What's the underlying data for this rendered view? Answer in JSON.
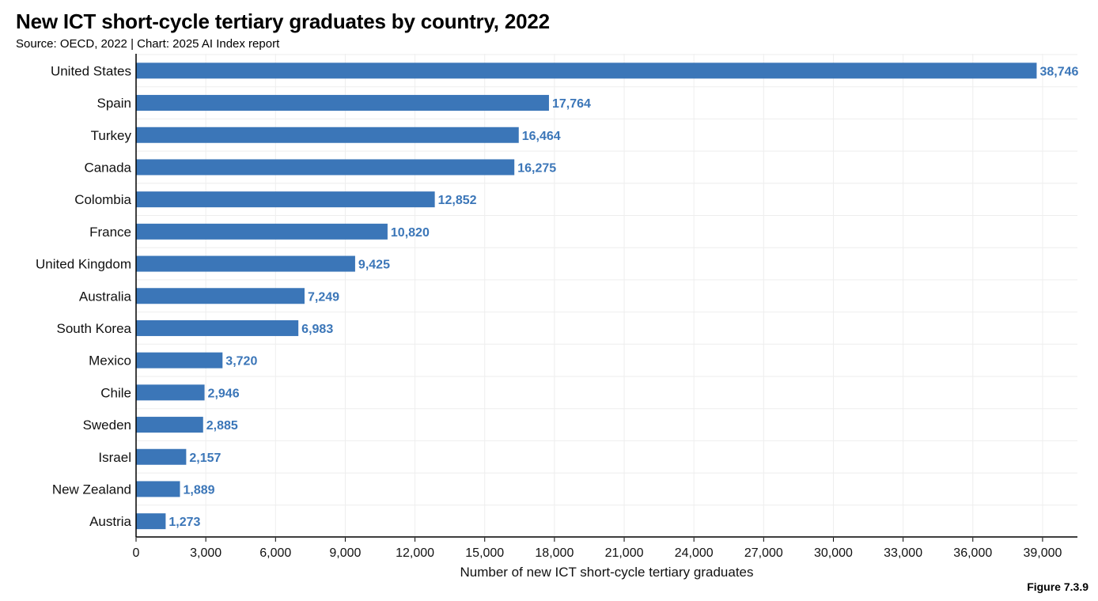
{
  "header": {
    "title": "New ICT short-cycle tertiary graduates by country, 2022",
    "subtitle": "Source: OECD, 2022 | Chart: 2025 AI Index report"
  },
  "footer": {
    "figure": "Figure 7.3.9"
  },
  "colors": {
    "bar": "#3b76b8",
    "grid": "#eeeeee",
    "axis": "#000000"
  },
  "chart_data": {
    "type": "bar",
    "orientation": "horizontal",
    "title": "New ICT short-cycle tertiary graduates by country, 2022",
    "xlabel": "Number of new ICT short-cycle tertiary graduates",
    "ylabel": "",
    "xlim": [
      0,
      40500
    ],
    "xticks": [
      0,
      3000,
      6000,
      9000,
      12000,
      15000,
      18000,
      21000,
      24000,
      27000,
      30000,
      33000,
      36000,
      39000
    ],
    "xtick_labels": [
      "0",
      "3,000",
      "6,000",
      "9,000",
      "12,000",
      "15,000",
      "18,000",
      "21,000",
      "24,000",
      "27,000",
      "30,000",
      "33,000",
      "36,000",
      "39,000"
    ],
    "categories": [
      "United States",
      "Spain",
      "Turkey",
      "Canada",
      "Colombia",
      "France",
      "United Kingdom",
      "Australia",
      "South Korea",
      "Mexico",
      "Chile",
      "Sweden",
      "Israel",
      "New Zealand",
      "Austria"
    ],
    "values": [
      38746,
      17764,
      16464,
      16275,
      12852,
      10820,
      9425,
      7249,
      6983,
      3720,
      2946,
      2885,
      2157,
      1889,
      1273
    ],
    "value_labels": [
      "38,746",
      "17,764",
      "16,464",
      "16,275",
      "12,852",
      "10,820",
      "9,425",
      "7,249",
      "6,983",
      "3,720",
      "2,946",
      "2,885",
      "2,157",
      "1,889",
      "1,273"
    ],
    "grid": true
  }
}
